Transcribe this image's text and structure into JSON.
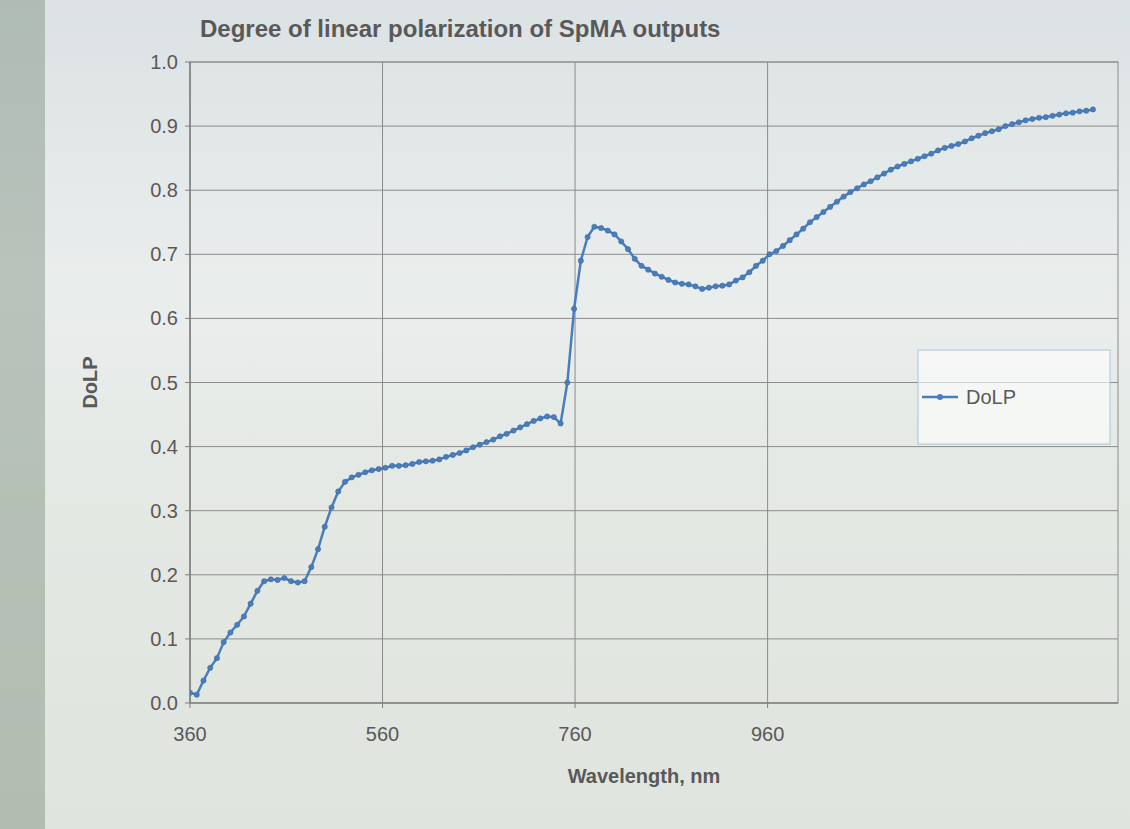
{
  "chart_data": {
    "type": "line",
    "title": "Degree of linear polarization of SpMA outputs",
    "x_label": "Wavelength, nm",
    "y_label": "DoLP",
    "x": [
      360,
      367,
      374,
      381,
      388,
      395,
      402,
      409,
      416,
      423,
      430,
      437,
      444,
      451,
      458,
      465,
      472,
      479,
      486,
      493,
      500,
      507,
      514,
      521,
      528,
      535,
      542,
      549,
      556,
      563,
      570,
      577,
      584,
      591,
      598,
      605,
      612,
      619,
      626,
      633,
      640,
      647,
      654,
      661,
      668,
      675,
      682,
      689,
      696,
      703,
      710,
      717,
      724,
      731,
      738,
      745,
      752,
      759,
      766,
      773,
      780,
      787,
      794,
      801,
      808,
      815,
      822,
      829,
      836,
      843,
      850,
      857,
      864,
      871,
      878,
      885,
      892,
      899,
      906,
      913,
      920,
      927,
      934,
      941,
      948,
      955,
      962,
      969,
      976,
      983,
      990,
      997,
      1004,
      1011,
      1018,
      1025,
      1032,
      1039,
      1046,
      1053,
      1060,
      1067,
      1074,
      1081,
      1088,
      1095,
      1102,
      1109,
      1116,
      1123,
      1130,
      1137,
      1144,
      1151,
      1158,
      1165,
      1172,
      1179,
      1186,
      1193,
      1200,
      1207,
      1214,
      1221,
      1228,
      1235,
      1242,
      1249,
      1256,
      1263,
      1270,
      1277,
      1284,
      1291,
      1298
    ],
    "series": [
      {
        "name": "DoLP",
        "color": "#4a7ebb",
        "marker": "circle",
        "line_style": "solid",
        "values": [
          0.016,
          0.013,
          0.035,
          0.055,
          0.07,
          0.095,
          0.11,
          0.122,
          0.135,
          0.155,
          0.175,
          0.19,
          0.193,
          0.192,
          0.195,
          0.19,
          0.188,
          0.19,
          0.212,
          0.24,
          0.275,
          0.305,
          0.33,
          0.345,
          0.352,
          0.356,
          0.36,
          0.363,
          0.365,
          0.367,
          0.37,
          0.37,
          0.371,
          0.373,
          0.376,
          0.377,
          0.378,
          0.38,
          0.384,
          0.387,
          0.39,
          0.394,
          0.399,
          0.403,
          0.407,
          0.411,
          0.416,
          0.42,
          0.425,
          0.43,
          0.435,
          0.44,
          0.444,
          0.447,
          0.446,
          0.436,
          0.5,
          0.615,
          0.69,
          0.727,
          0.743,
          0.741,
          0.737,
          0.731,
          0.72,
          0.708,
          0.693,
          0.682,
          0.676,
          0.67,
          0.665,
          0.66,
          0.656,
          0.654,
          0.653,
          0.65,
          0.646,
          0.648,
          0.65,
          0.651,
          0.653,
          0.659,
          0.664,
          0.672,
          0.682,
          0.69,
          0.7,
          0.705,
          0.713,
          0.722,
          0.731,
          0.74,
          0.75,
          0.758,
          0.766,
          0.774,
          0.782,
          0.79,
          0.797,
          0.803,
          0.809,
          0.814,
          0.82,
          0.826,
          0.832,
          0.837,
          0.841,
          0.845,
          0.849,
          0.853,
          0.857,
          0.862,
          0.866,
          0.869,
          0.872,
          0.876,
          0.881,
          0.885,
          0.889,
          0.892,
          0.895,
          0.9,
          0.903,
          0.906,
          0.909,
          0.911,
          0.913,
          0.914,
          0.916,
          0.918,
          0.92,
          0.921,
          0.923,
          0.924,
          0.926
        ]
      }
    ],
    "xlim": [
      360,
      1324
    ],
    "xticks": [
      360,
      560,
      760,
      960
    ],
    "ylim": [
      0,
      1
    ],
    "yticks": [
      {
        "value": 0,
        "label": "0.0"
      },
      0.1,
      0.2,
      0.3,
      0.4,
      0.5,
      0.6,
      0.7,
      0.8,
      0.9,
      {
        "value": 1,
        "label": "1.0"
      }
    ],
    "grid": true,
    "legend": "right"
  }
}
